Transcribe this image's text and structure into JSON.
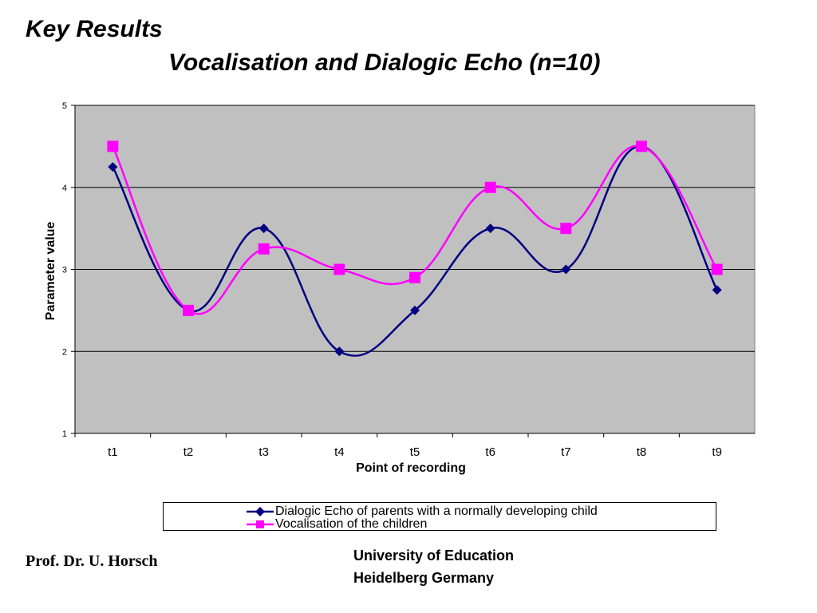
{
  "slide": {
    "title": "Key Results",
    "subtitle": "Vocalisation and Dialogic Echo (n=10)",
    "author": "Prof. Dr. U. Horsch",
    "institution_line1": "University of Education",
    "institution_line2": "Heidelberg Germany"
  },
  "chart_data": {
    "type": "line",
    "title": "",
    "xlabel": "Point of recording",
    "ylabel": "Parameter value",
    "categories": [
      "t1",
      "t2",
      "t3",
      "t4",
      "t5",
      "t6",
      "t7",
      "t8",
      "t9"
    ],
    "ylim": [
      1,
      5
    ],
    "yticks": [
      1,
      2,
      3,
      4,
      5
    ],
    "grid": true,
    "plot_background": "#c0c0c0",
    "legend_position": "bottom",
    "series": [
      {
        "name": "Dialogic Echo of parents with a normally developing child",
        "values": [
          4.25,
          2.5,
          3.5,
          2.0,
          2.5,
          3.5,
          3.0,
          4.5,
          2.75
        ],
        "color": "#000080",
        "marker": "diamond"
      },
      {
        "name": "Vocalisation of the children",
        "values": [
          4.5,
          2.5,
          3.25,
          3.0,
          2.9,
          4.0,
          3.5,
          4.5,
          3.0
        ],
        "color": "#ff00ff",
        "marker": "square"
      }
    ]
  }
}
